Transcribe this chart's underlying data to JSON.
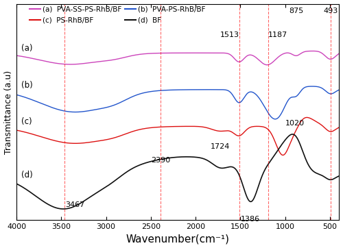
{
  "xlabel": "Wavenumber(cm⁻¹)",
  "ylabel": "Transmittance (a.u)",
  "legend_entries": [
    {
      "label": "(a)  PVA-SS-PS-RhB/BF",
      "color": "#CC44BB"
    },
    {
      "label": "(b)  PVA-PS-RhB/BF",
      "color": "#2255CC"
    },
    {
      "label": "(c)  PS-RhB/BF",
      "color": "#DD1111"
    },
    {
      "label": "(d)  BF",
      "color": "#111111"
    }
  ],
  "vlines": [
    3467,
    2390,
    1513,
    1187,
    493
  ],
  "curve_offsets": [
    3.0,
    2.1,
    1.2,
    0.0
  ]
}
